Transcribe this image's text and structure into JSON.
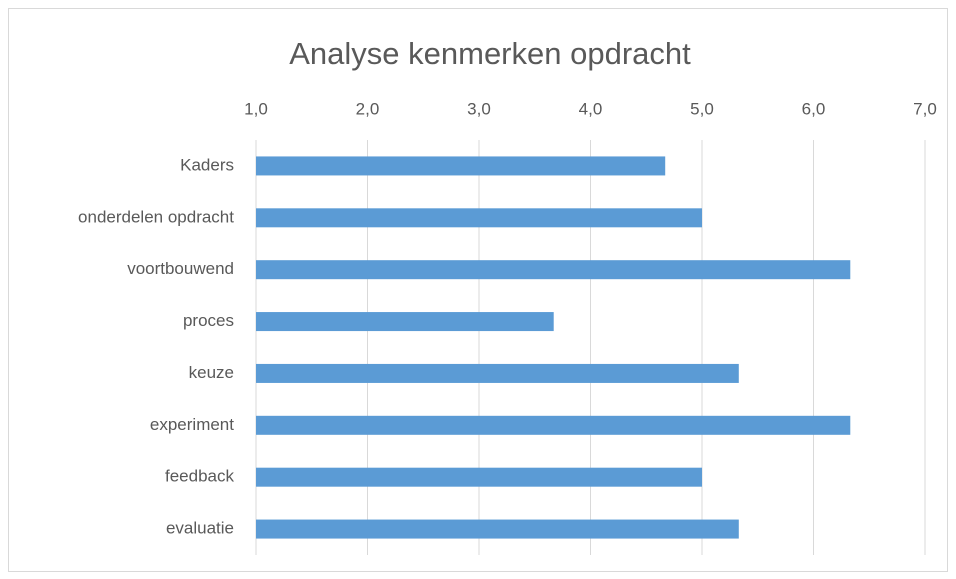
{
  "chart_data": {
    "type": "bar",
    "orientation": "horizontal",
    "title": "Analyse kenmerken opdracht",
    "categories": [
      "Kaders",
      "onderdelen opdracht",
      "voortbouwend",
      "proces",
      "keuze",
      "experiment",
      "feedback",
      "evaluatie"
    ],
    "values": [
      4.67,
      5.0,
      6.33,
      3.67,
      5.33,
      6.33,
      5.0,
      5.33
    ],
    "color": "#5b9bd5",
    "xlim": [
      1,
      7
    ],
    "xticks": [
      {
        "value": 1,
        "label": "1,0"
      },
      {
        "value": 2,
        "label": "2,0"
      },
      {
        "value": 3,
        "label": "3,0"
      },
      {
        "value": 4,
        "label": "4,0"
      },
      {
        "value": 5,
        "label": "5,0"
      },
      {
        "value": 6,
        "label": "6,0"
      },
      {
        "value": 7,
        "label": "7,0"
      }
    ],
    "grid": true
  }
}
